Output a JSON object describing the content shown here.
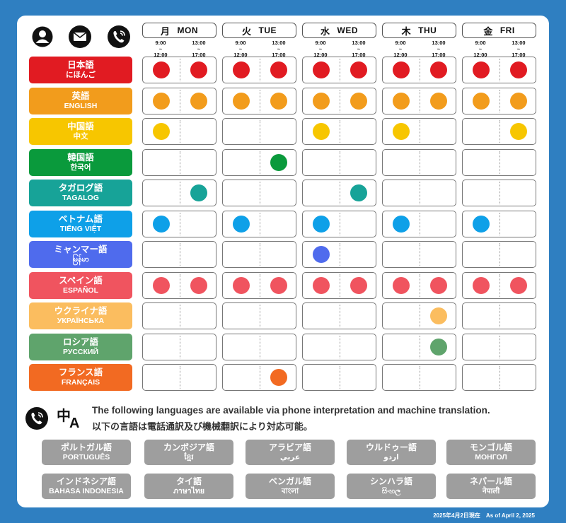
{
  "header_icons": [
    "user-icon",
    "mail-icon",
    "phone-icon"
  ],
  "days": [
    {
      "jp": "月",
      "en": "MON"
    },
    {
      "jp": "火",
      "en": "TUE"
    },
    {
      "jp": "水",
      "en": "WED"
    },
    {
      "jp": "木",
      "en": "THU"
    },
    {
      "jp": "金",
      "en": "FRI"
    }
  ],
  "slots": [
    {
      "start": "9:00",
      "end": "12:00"
    },
    {
      "start": "13:00",
      "end": "17:00"
    }
  ],
  "languages": [
    {
      "name_jp": "日本語",
      "name_native": "にほんご",
      "color": "#e11b22",
      "availability": [
        [
          1,
          1
        ],
        [
          1,
          1
        ],
        [
          1,
          1
        ],
        [
          1,
          1
        ],
        [
          1,
          1
        ]
      ]
    },
    {
      "name_jp": "英語",
      "name_native": "ENGLISH",
      "color": "#f29c1c",
      "availability": [
        [
          1,
          1
        ],
        [
          1,
          1
        ],
        [
          1,
          1
        ],
        [
          1,
          1
        ],
        [
          1,
          1
        ]
      ]
    },
    {
      "name_jp": "中国語",
      "name_native": "中文",
      "color": "#f7c600",
      "availability": [
        [
          1,
          0
        ],
        [
          0,
          0
        ],
        [
          1,
          0
        ],
        [
          1,
          0
        ],
        [
          0,
          1
        ]
      ]
    },
    {
      "name_jp": "韓国語",
      "name_native": "한국어",
      "color": "#0a9a3c",
      "availability": [
        [
          0,
          0
        ],
        [
          0,
          1
        ],
        [
          0,
          0
        ],
        [
          0,
          0
        ],
        [
          0,
          0
        ]
      ]
    },
    {
      "name_jp": "タガログ語",
      "name_native": "TAGALOG",
      "color": "#17a398",
      "availability": [
        [
          0,
          1
        ],
        [
          0,
          0
        ],
        [
          0,
          1
        ],
        [
          0,
          0
        ],
        [
          0,
          0
        ]
      ]
    },
    {
      "name_jp": "ベトナム語",
      "name_native": "TIẾNG VIỆT",
      "color": "#0ea0e8",
      "availability": [
        [
          1,
          0
        ],
        [
          1,
          0
        ],
        [
          1,
          0
        ],
        [
          1,
          0
        ],
        [
          1,
          0
        ]
      ]
    },
    {
      "name_jp": "ミャンマー語",
      "name_native": "မြန်မာ",
      "color": "#4f6bed",
      "availability": [
        [
          0,
          0
        ],
        [
          0,
          0
        ],
        [
          1,
          0
        ],
        [
          0,
          0
        ],
        [
          0,
          0
        ]
      ]
    },
    {
      "name_jp": "スペイン語",
      "name_native": "ESPAÑOL",
      "color": "#f0545f",
      "availability": [
        [
          1,
          1
        ],
        [
          1,
          1
        ],
        [
          1,
          1
        ],
        [
          1,
          1
        ],
        [
          1,
          1
        ]
      ]
    },
    {
      "name_jp": "ウクライナ語",
      "name_native": "УКРАЇНСЬКА",
      "color": "#fbbd5f",
      "availability": [
        [
          0,
          0
        ],
        [
          0,
          0
        ],
        [
          0,
          0
        ],
        [
          0,
          1
        ],
        [
          0,
          0
        ]
      ]
    },
    {
      "name_jp": "ロシア語",
      "name_native": "РУССКИЙ",
      "color": "#5fa46c",
      "availability": [
        [
          0,
          0
        ],
        [
          0,
          0
        ],
        [
          0,
          0
        ],
        [
          0,
          1
        ],
        [
          0,
          0
        ]
      ]
    },
    {
      "name_jp": "フランス語",
      "name_native": "FRANÇAIS",
      "color": "#f26a22",
      "availability": [
        [
          0,
          0
        ],
        [
          0,
          1
        ],
        [
          0,
          0
        ],
        [
          0,
          0
        ],
        [
          0,
          0
        ]
      ]
    }
  ],
  "notice": {
    "en": "The following languages are available via phone interpretation and machine translation.",
    "ja": "以下の言語は電話通訳及び機械翻訳により対応可能。",
    "icons": [
      "phone-icon",
      "translate-icon"
    ],
    "translate_glyphs": [
      "中",
      "A"
    ]
  },
  "remote_languages": [
    {
      "name_jp": "ポルトガル語",
      "name_native": "PORTUGUÊS"
    },
    {
      "name_jp": "カンボジア語",
      "name_native": "ខ្មែរ"
    },
    {
      "name_jp": "アラビア語",
      "name_native": "عربي"
    },
    {
      "name_jp": "ウルドゥー語",
      "name_native": "اردو"
    },
    {
      "name_jp": "モンゴル語",
      "name_native": "МОНГОЛ"
    },
    {
      "name_jp": "インドネシア語",
      "name_native": "BAHASA INDONESIA"
    },
    {
      "name_jp": "タイ語",
      "name_native": "ภาษาไทย"
    },
    {
      "name_jp": "ベンガル語",
      "name_native": "বাংলা"
    },
    {
      "name_jp": "シンハラ語",
      "name_native": "සිංහල"
    },
    {
      "name_jp": "ネパール語",
      "name_native": "नेपाली"
    }
  ],
  "footer": "2025年4月2日現在　As of April 2, 2025",
  "colors": {
    "background": "#2f7fc1",
    "card": "#ffffff",
    "remote_button": "#9e9e9e"
  }
}
